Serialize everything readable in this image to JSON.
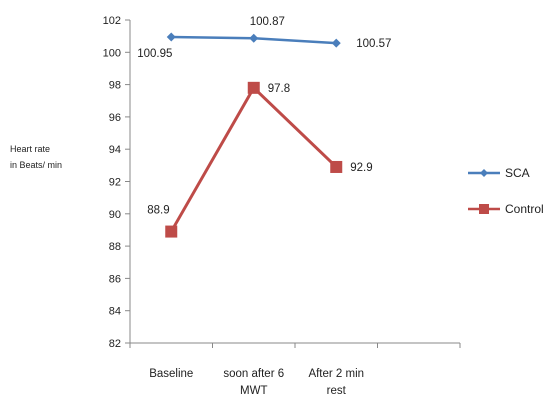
{
  "chart_data": {
    "type": "line",
    "categories": [
      [
        "Baseline"
      ],
      [
        "soon after 6",
        "MWT"
      ],
      [
        "After 2 min",
        "rest"
      ]
    ],
    "ylabel": [
      "Heart rate",
      "in Beats/ min"
    ],
    "ylim": [
      82,
      102
    ],
    "ytick_step": 2,
    "grid": false,
    "legend_position": "right",
    "series": [
      {
        "name": "SCA",
        "color": "#4a7ebb",
        "marker": "diamond",
        "values": [
          100.95,
          100.87,
          100.57
        ],
        "labels": [
          "100.95",
          "100.87",
          "100.57"
        ]
      },
      {
        "name": "Control",
        "color": "#be4b48",
        "marker": "square",
        "values": [
          88.9,
          97.8,
          92.9
        ],
        "labels": [
          "88.9",
          "97.8",
          "92.9"
        ]
      }
    ]
  }
}
